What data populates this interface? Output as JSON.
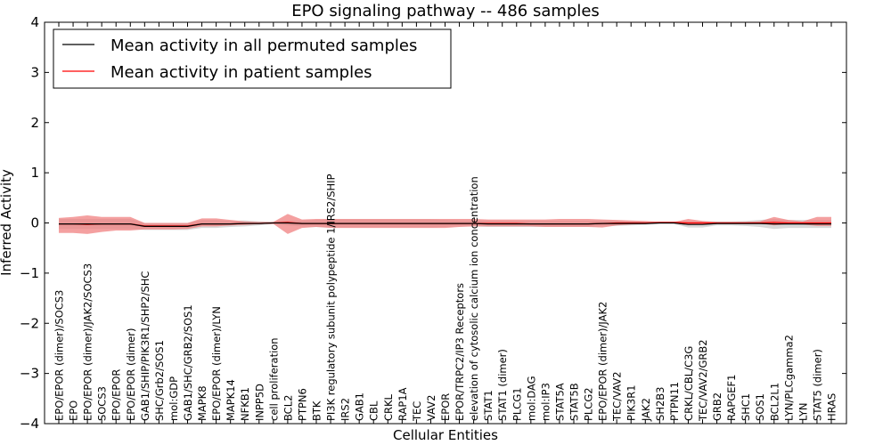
{
  "chart_data": {
    "type": "line",
    "title": "EPO signaling pathway -- 486 samples",
    "xlabel": "Cellular Entities",
    "ylabel": "Inferred Activity",
    "ylim": [
      -4,
      4
    ],
    "yticks": [
      -4,
      -3,
      -2,
      -1,
      0,
      1,
      2,
      3,
      4
    ],
    "ytick_labels": [
      "−4",
      "−3",
      "−2",
      "−1",
      "0",
      "1",
      "2",
      "3",
      "4"
    ],
    "legend_position": "top-left",
    "colors": {
      "permuted": "#000000",
      "patient": "#ff0000",
      "patient_band": "#f08080",
      "permuted_band": "#c8c8c8"
    },
    "categories": [
      "EPO/EPOR (dimer)/SOCS3",
      "EPO",
      "EPO/EPOR (dimer)/JAK2/SOCS3",
      "SOCS3",
      "EPO/EPOR",
      "EPO/EPOR (dimer)",
      "GAB1/SHIP/PIK3R1/SHP2/SHC",
      "SHC/Grb2/SOS1",
      "mol:GDP",
      "GAB1/SHC/GRB2/SOS1",
      "MAPK8",
      "EPO/EPOR (dimer)/LYN",
      "MAPK14",
      "NFKB1",
      "INPP5D",
      "cell proliferation",
      "BCL2",
      "PTPN6",
      "BTK",
      "PI3K regulatory subunit polypeptide 1/IRS2/SHIP",
      "IRS2",
      "GAB1",
      "CBL",
      "CRKL",
      "RAP1A",
      "TEC",
      "VAV2",
      "EPOR",
      "EPOR/TRPC2/IP3 Receptors",
      "elevation of cytosolic calcium ion concentration",
      "STAT1",
      "STAT1 (dimer)",
      "PLCG1",
      "mol:DAG",
      "mol:IP3",
      "STAT5A",
      "STAT5B",
      "PLCG2",
      "EPO/EPOR (dimer)/JAK2",
      "TEC/VAV2",
      "PIK3R1",
      "JAK2",
      "SH2B3",
      "PTPN11",
      "CRKL/CBL/C3G",
      "TEC/VAV2/GRB2",
      "GRB2",
      "RAPGEF1",
      "SHC1",
      "SOS1",
      "BCL2L1",
      "LYN/PLCgamma2",
      "LYN",
      "STAT5 (dimer)",
      "HRAS"
    ],
    "series": [
      {
        "name": "Mean activity in all permuted samples",
        "values": [
          -0.02,
          -0.02,
          -0.02,
          -0.02,
          -0.02,
          -0.02,
          -0.07,
          -0.07,
          -0.07,
          -0.07,
          -0.02,
          -0.02,
          -0.02,
          -0.01,
          -0.01,
          0,
          0,
          -0.01,
          -0.01,
          -0.01,
          -0.01,
          -0.01,
          -0.01,
          -0.01,
          -0.01,
          -0.01,
          -0.01,
          -0.01,
          -0.01,
          -0.01,
          -0.02,
          -0.02,
          -0.02,
          -0.02,
          -0.02,
          -0.02,
          -0.02,
          -0.02,
          -0.01,
          -0.01,
          -0.01,
          -0.01,
          0,
          0,
          -0.03,
          -0.03,
          -0.01,
          -0.01,
          -0.01,
          -0.01,
          -0.02,
          -0.02,
          -0.02,
          -0.02,
          -0.02
        ],
        "lower": [
          -0.12,
          -0.12,
          -0.12,
          -0.12,
          -0.12,
          -0.12,
          -0.14,
          -0.14,
          -0.14,
          -0.14,
          -0.1,
          -0.1,
          -0.08,
          -0.07,
          -0.05,
          -0.02,
          -0.05,
          -0.07,
          -0.08,
          -0.09,
          -0.09,
          -0.09,
          -0.09,
          -0.09,
          -0.09,
          -0.09,
          -0.09,
          -0.08,
          -0.07,
          -0.07,
          -0.08,
          -0.08,
          -0.08,
          -0.08,
          -0.08,
          -0.08,
          -0.08,
          -0.08,
          -0.07,
          -0.06,
          -0.05,
          -0.04,
          -0.02,
          -0.02,
          -0.09,
          -0.09,
          -0.05,
          -0.05,
          -0.06,
          -0.08,
          -0.12,
          -0.1,
          -0.1,
          -0.1,
          -0.1
        ],
        "upper": [
          0.08,
          0.08,
          0.08,
          0.08,
          0.08,
          0.08,
          0.0,
          0.0,
          0.0,
          0.0,
          0.06,
          0.06,
          0.04,
          0.05,
          0.03,
          0.02,
          0.05,
          0.05,
          0.06,
          0.07,
          0.07,
          0.07,
          0.07,
          0.07,
          0.07,
          0.07,
          0.07,
          0.06,
          0.05,
          0.05,
          0.04,
          0.04,
          0.04,
          0.04,
          0.04,
          0.04,
          0.04,
          0.04,
          0.05,
          0.04,
          0.03,
          0.02,
          0.02,
          0.02,
          0.03,
          0.03,
          0.03,
          0.03,
          0.04,
          0.06,
          0.08,
          0.06,
          0.06,
          0.06,
          0.06
        ]
      },
      {
        "name": "Mean activity in patient samples",
        "values": [
          -0.02,
          -0.02,
          -0.03,
          -0.02,
          -0.02,
          -0.02,
          -0.06,
          -0.06,
          -0.06,
          -0.06,
          -0.02,
          -0.02,
          -0.02,
          -0.01,
          -0.01,
          0,
          0.01,
          -0.01,
          -0.01,
          -0.01,
          -0.01,
          -0.01,
          -0.01,
          -0.01,
          -0.01,
          -0.01,
          -0.01,
          -0.01,
          -0.01,
          -0.01,
          -0.01,
          -0.01,
          -0.01,
          -0.02,
          -0.02,
          -0.02,
          -0.02,
          -0.02,
          -0.01,
          0,
          0,
          0,
          0.01,
          0.01,
          0,
          0,
          0,
          0,
          0,
          0,
          0.01,
          0,
          0,
          0,
          0
        ],
        "lower": [
          -0.2,
          -0.2,
          -0.22,
          -0.18,
          -0.15,
          -0.15,
          -0.13,
          -0.13,
          -0.13,
          -0.12,
          -0.07,
          -0.07,
          -0.05,
          -0.04,
          -0.02,
          -0.02,
          -0.22,
          -0.1,
          -0.08,
          -0.1,
          -0.1,
          -0.1,
          -0.1,
          -0.1,
          -0.1,
          -0.1,
          -0.1,
          -0.1,
          -0.08,
          -0.07,
          -0.07,
          -0.07,
          -0.07,
          -0.07,
          -0.08,
          -0.08,
          -0.08,
          -0.08,
          -0.09,
          -0.05,
          -0.03,
          -0.02,
          -0.01,
          -0.01,
          -0.04,
          -0.03,
          -0.01,
          -0.01,
          -0.01,
          -0.01,
          -0.05,
          -0.02,
          -0.03,
          -0.06,
          -0.06
        ],
        "upper": [
          0.1,
          0.12,
          0.15,
          0.12,
          0.12,
          0.12,
          0.0,
          0.0,
          0.0,
          0.0,
          0.09,
          0.09,
          0.06,
          0.03,
          0.02,
          0.02,
          0.18,
          0.07,
          0.08,
          0.08,
          0.08,
          0.08,
          0.08,
          0.08,
          0.08,
          0.08,
          0.08,
          0.08,
          0.08,
          0.08,
          0.07,
          0.07,
          0.07,
          0.07,
          0.07,
          0.08,
          0.08,
          0.08,
          0.07,
          0.06,
          0.05,
          0.04,
          0.02,
          0.02,
          0.08,
          0.04,
          0.02,
          0.02,
          0.02,
          0.03,
          0.12,
          0.06,
          0.03,
          0.12,
          0.12
        ]
      }
    ]
  }
}
